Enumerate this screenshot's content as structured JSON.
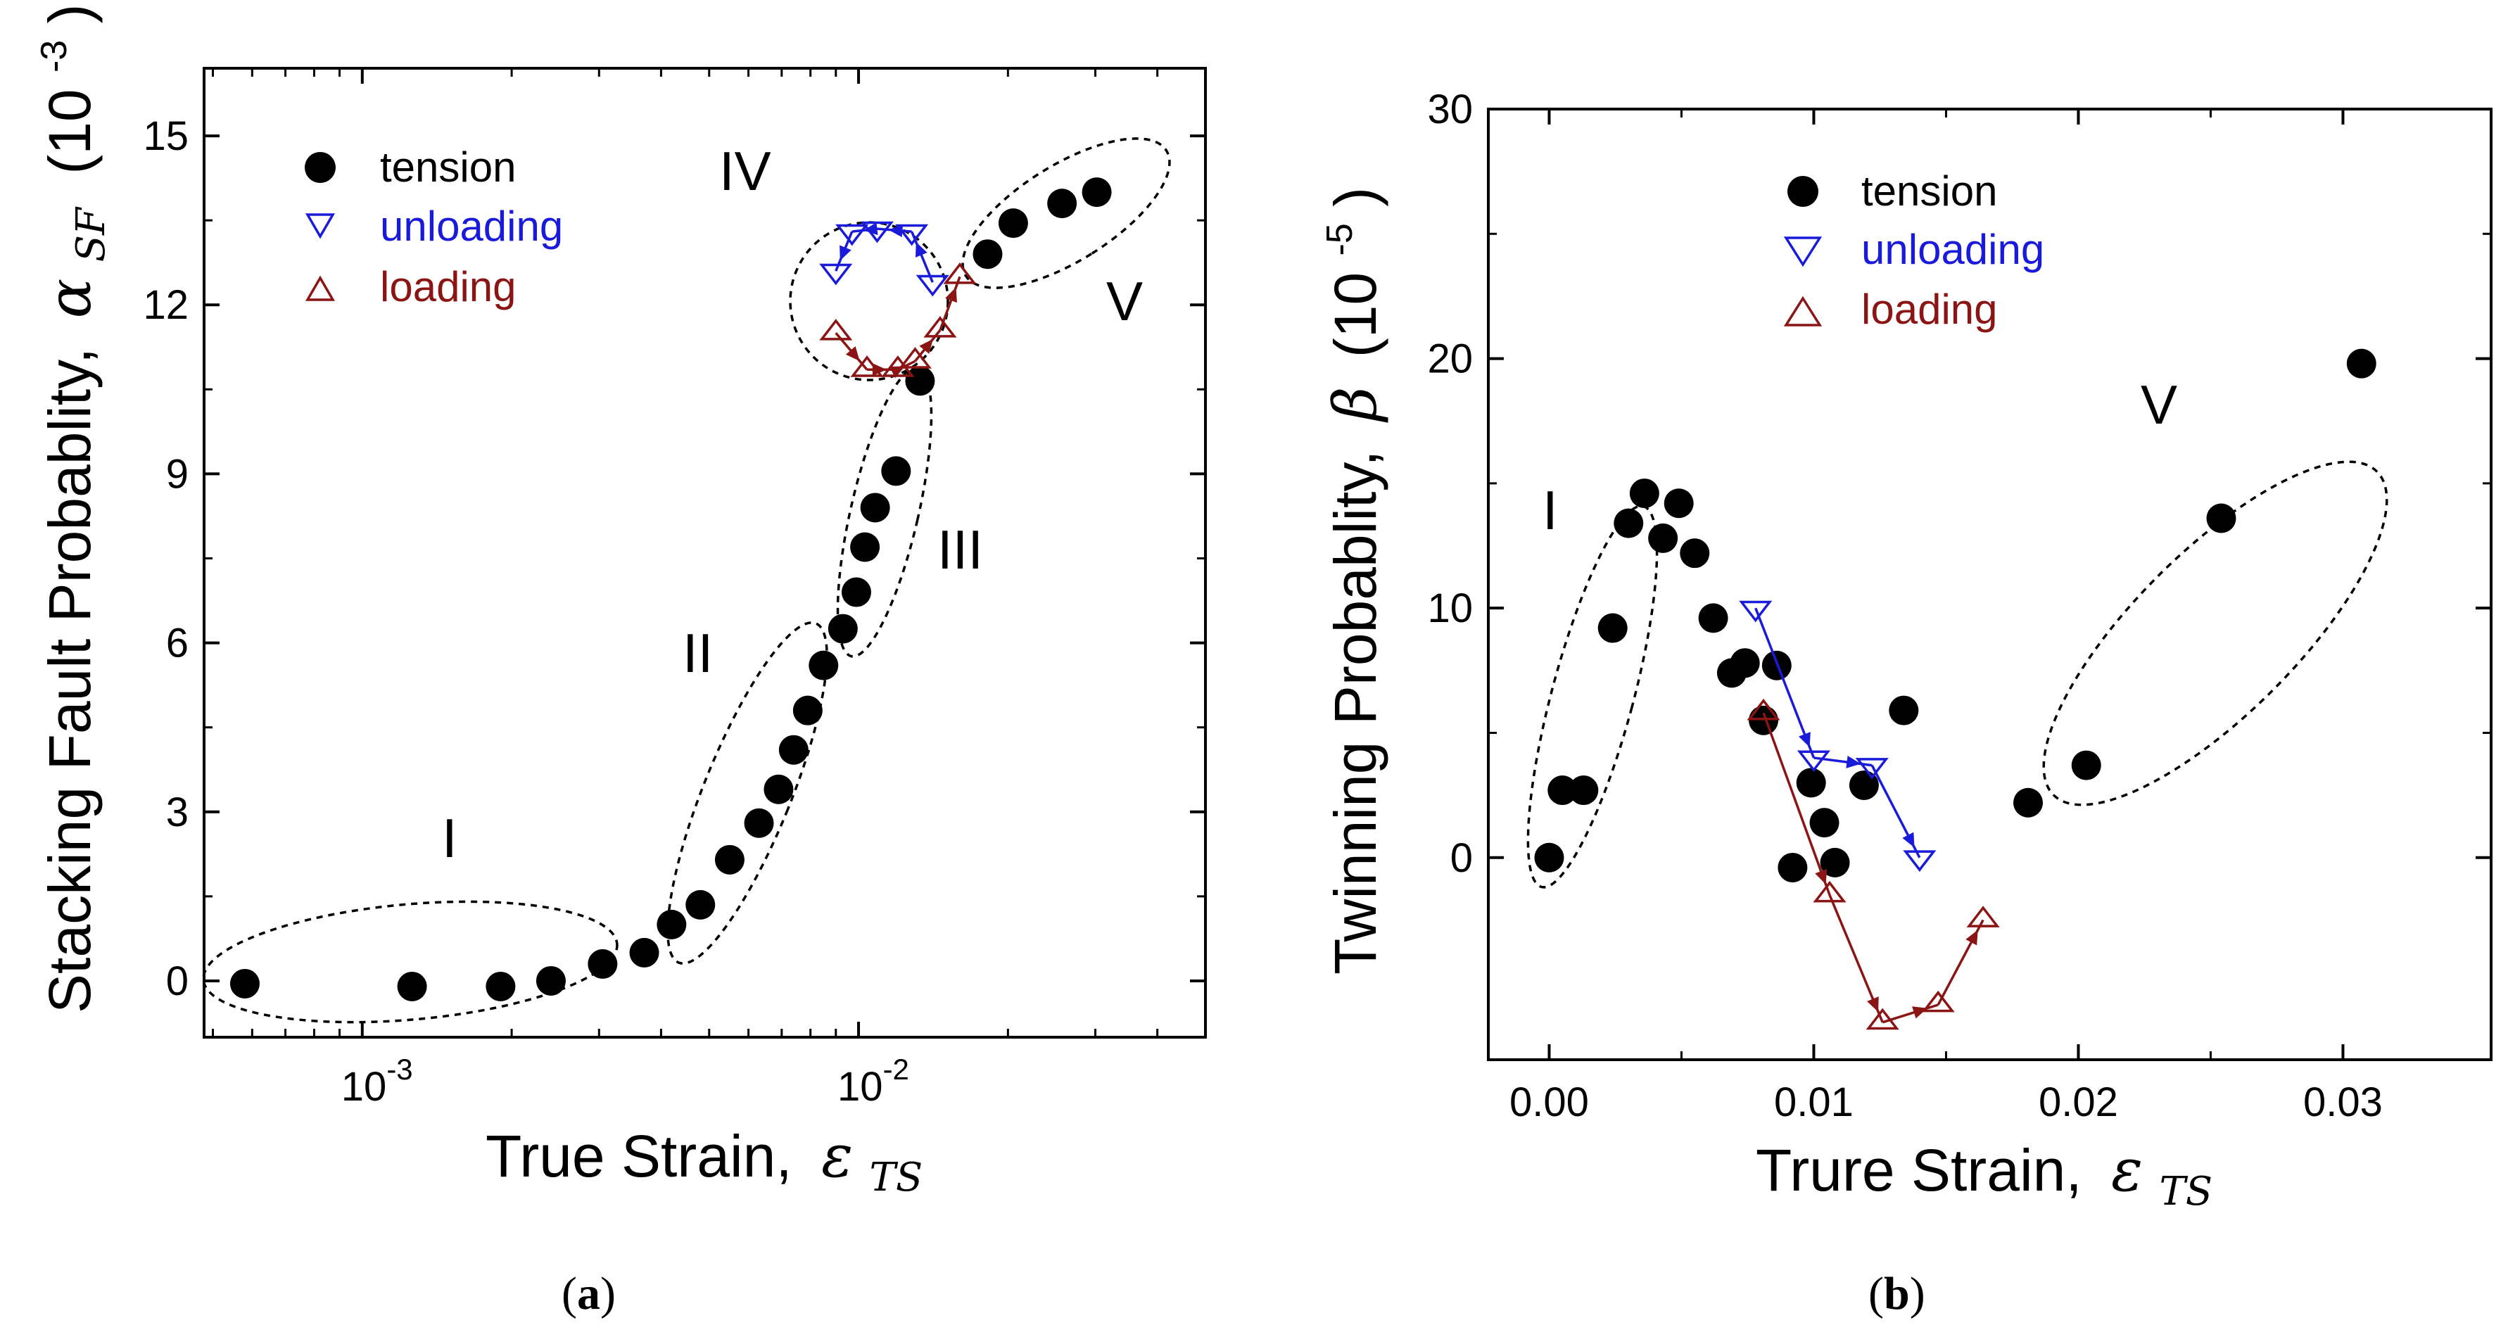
{
  "chart_data": [
    {
      "panel": "(a)",
      "type": "scatter",
      "xscale": "log",
      "xlabel": "True Strain,",
      "xlabel_symbol": "ε",
      "xlabel_sub": "TS",
      "ylabel": "Stacking Fault Probablity,",
      "ylabel_symbol": "α",
      "ylabel_sub": "SF",
      "ylabel_unit_open": "(10",
      "ylabel_unit_exp": "-3",
      "ylabel_unit_close": ")",
      "xlim": [
        0.00048,
        0.05
      ],
      "ylim": [
        -1.0,
        16.2
      ],
      "yticks": [
        0,
        3,
        6,
        9,
        12,
        15
      ],
      "xticks": [
        {
          "value": 0.001,
          "base": "10",
          "exp": "-3"
        },
        {
          "value": 0.01,
          "base": "10",
          "exp": "-2"
        }
      ],
      "legend": {
        "position": "top-left",
        "entries": [
          "tension",
          "unloading",
          "loading"
        ]
      },
      "series": [
        {
          "name": "tension",
          "marker": "filled-circle",
          "color": "#000000",
          "points": [
            [
              0.00058,
              -0.05
            ],
            [
              0.00126,
              -0.1
            ],
            [
              0.0019,
              -0.1
            ],
            [
              0.0024,
              0.0
            ],
            [
              0.00305,
              0.3
            ],
            [
              0.0037,
              0.5
            ],
            [
              0.0042,
              1.0
            ],
            [
              0.0048,
              1.35
            ],
            [
              0.0055,
              2.15
            ],
            [
              0.0063,
              2.8
            ],
            [
              0.0069,
              3.4
            ],
            [
              0.0074,
              4.1
            ],
            [
              0.0079,
              4.8
            ],
            [
              0.0085,
              5.6
            ],
            [
              0.0093,
              6.25
            ],
            [
              0.0099,
              6.9
            ],
            [
              0.0103,
              7.7
            ],
            [
              0.0108,
              8.4
            ],
            [
              0.0119,
              9.05
            ],
            [
              0.0133,
              10.65
            ],
            [
              0.0182,
              12.9
            ],
            [
              0.0205,
              13.45
            ],
            [
              0.0257,
              13.8
            ],
            [
              0.0302,
              14.0
            ]
          ]
        },
        {
          "name": "unloading",
          "marker": "open-triangle-down",
          "color": "#1a1adb",
          "points": [
            [
              0.0141,
              12.4
            ],
            [
              0.0128,
              13.3
            ],
            [
              0.0109,
              13.35
            ],
            [
              0.0097,
              13.3
            ],
            [
              0.009,
              12.6
            ]
          ]
        },
        {
          "name": "loading",
          "marker": "open-triangle-up",
          "color": "#8b1414",
          "points": [
            [
              0.009,
              11.5
            ],
            [
              0.0104,
              10.85
            ],
            [
              0.012,
              10.85
            ],
            [
              0.013,
              11.0
            ],
            [
              0.0146,
              11.55
            ],
            [
              0.016,
              12.5
            ]
          ]
        }
      ],
      "regions": [
        "I",
        "II",
        "III",
        "IV",
        "V"
      ]
    },
    {
      "panel": "(b)",
      "type": "scatter",
      "xscale": "linear",
      "xlabel": "Trure Strain,",
      "xlabel_symbol": "ε",
      "xlabel_sub": "TS",
      "ylabel": "Twinning Probablity,",
      "ylabel_symbol": "β",
      "ylabel_unit_open": "(10",
      "ylabel_unit_exp": "-5",
      "ylabel_unit_close": ")",
      "xlim": [
        -0.0023,
        0.0356
      ],
      "ylim": [
        -8.1,
        30
      ],
      "yticks": [
        0,
        10,
        20,
        30
      ],
      "xticks": [
        "0.00",
        "0.01",
        "0.02",
        "0.03"
      ],
      "legend": {
        "position": "top-left",
        "entries": [
          "tension",
          "unloading",
          "loading"
        ]
      },
      "series": [
        {
          "name": "tension",
          "marker": "filled-circle",
          "color": "#000000",
          "points": [
            [
              0.0,
              0.0
            ],
            [
              0.0005,
              2.7
            ],
            [
              0.0013,
              2.7
            ],
            [
              0.0024,
              9.2
            ],
            [
              0.003,
              13.4
            ],
            [
              0.0036,
              14.6
            ],
            [
              0.0043,
              12.8
            ],
            [
              0.0049,
              14.2
            ],
            [
              0.0055,
              12.2
            ],
            [
              0.0062,
              9.6
            ],
            [
              0.0069,
              7.4
            ],
            [
              0.0074,
              7.8
            ],
            [
              0.0081,
              5.5
            ],
            [
              0.0086,
              7.7
            ],
            [
              0.0092,
              -0.4
            ],
            [
              0.0099,
              3.0
            ],
            [
              0.0104,
              1.4
            ],
            [
              0.0108,
              -0.2
            ],
            [
              0.0119,
              2.9
            ],
            [
              0.0134,
              5.9
            ],
            [
              0.0181,
              2.2
            ],
            [
              0.0203,
              3.7
            ],
            [
              0.0254,
              13.6
            ],
            [
              0.0307,
              19.8
            ]
          ]
        },
        {
          "name": "unloading",
          "marker": "open-triangle-down",
          "color": "#1a1adb",
          "points": [
            [
              0.0078,
              10.0
            ],
            [
              0.01,
              4.0
            ],
            [
              0.0122,
              3.7
            ],
            [
              0.014,
              0.0
            ]
          ]
        },
        {
          "name": "loading",
          "marker": "open-triangle-up",
          "color": "#8b1414",
          "points": [
            [
              0.0081,
              5.8
            ],
            [
              0.0106,
              -1.5
            ],
            [
              0.0126,
              -6.6
            ],
            [
              0.0147,
              -5.9
            ],
            [
              0.0164,
              -2.5
            ]
          ]
        }
      ],
      "regions": [
        "I",
        "V"
      ]
    }
  ]
}
